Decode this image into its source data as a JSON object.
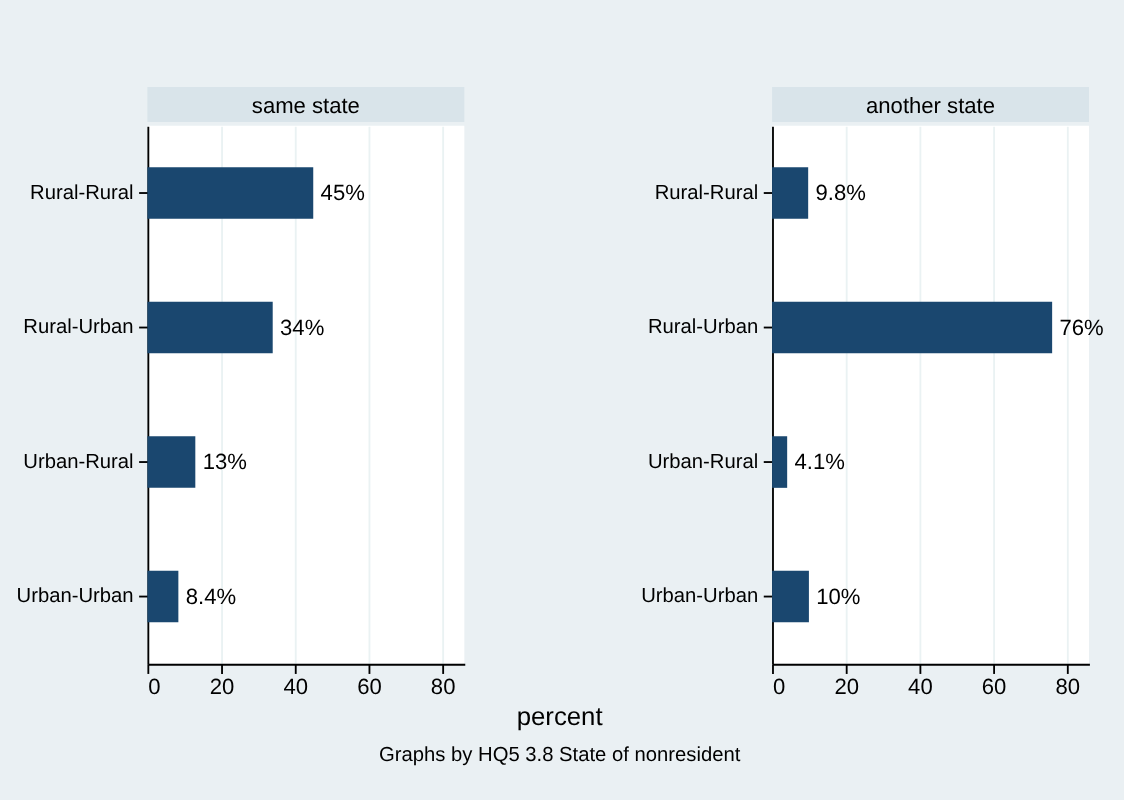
{
  "chart_data": [
    {
      "type": "bar",
      "orientation": "horizontal",
      "title": "same state",
      "categories": [
        "Rural-Rural",
        "Rural-Urban",
        "Urban-Rural",
        "Urban-Urban"
      ],
      "values": [
        45,
        34,
        13,
        8.4
      ],
      "value_labels": [
        "45%",
        "34%",
        "13%",
        "8.4%"
      ],
      "color": "#1a476f",
      "xlim": [
        0,
        86
      ],
      "xticks": [
        0,
        20,
        40,
        60,
        80
      ],
      "grid": "x",
      "xlabel": "percent",
      "annotations": [
        "Graphs by HQ5 3.8 State of nonresident"
      ]
    },
    {
      "type": "bar",
      "orientation": "horizontal",
      "title": "another state",
      "categories": [
        "Rural-Rural",
        "Rural-Urban",
        "Urban-Rural",
        "Urban-Urban"
      ],
      "values": [
        9.8,
        76,
        4.1,
        10
      ],
      "value_labels": [
        "9.8%",
        "76%",
        "4.1%",
        "10%"
      ],
      "color": "#1a476f",
      "xlim": [
        0,
        86
      ],
      "xticks": [
        0,
        20,
        40,
        60,
        80
      ],
      "grid": "x"
    }
  ]
}
